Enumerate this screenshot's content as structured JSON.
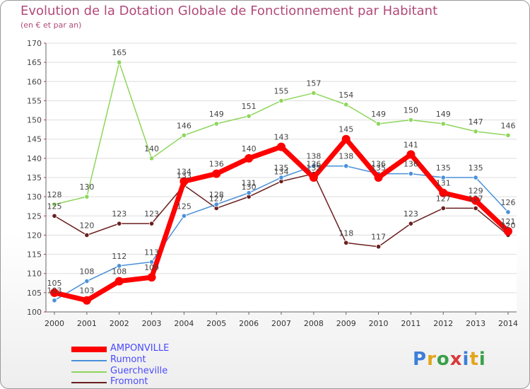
{
  "title": "Evolution de la Dotation Globale de Fonctionnement par Habitant",
  "subtitle": "(en € et par an)",
  "logo": {
    "text": "Proxiti",
    "colors": [
      "#3d7fd8",
      "#e2a51a",
      "#3aa04a",
      "#d93a3a",
      "#3d7fd8",
      "#e2a51a",
      "#3aa04a"
    ]
  },
  "chart_data": {
    "type": "line",
    "title": "Evolution de la Dotation Globale de Fonctionnement par Habitant",
    "subtitle": "(en € et par an)",
    "xlabel": "",
    "ylabel": "",
    "ylim": [
      100,
      170
    ],
    "y_ticks": [
      100,
      105,
      110,
      115,
      120,
      125,
      130,
      135,
      140,
      145,
      150,
      155,
      160,
      165,
      170
    ],
    "x": [
      "2000",
      "2001",
      "2002",
      "2003",
      "2004",
      "2005",
      "2006",
      "2007",
      "2008",
      "2009",
      "2010",
      "2011",
      "2012",
      "2013",
      "2014"
    ],
    "grid": "horizontal",
    "legend_position": "bottom-left",
    "series": [
      {
        "name": "AMPONVILLE",
        "color": "#ff0000",
        "values": [
          105,
          103,
          108,
          109,
          134,
          136,
          140,
          143,
          135,
          145,
          135,
          141,
          131,
          129,
          121
        ]
      },
      {
        "name": "Rumont",
        "color": "#4a90d9",
        "values": [
          103,
          108,
          112,
          113,
          125,
          128,
          131,
          135,
          138,
          138,
          136,
          136,
          135,
          135,
          126
        ]
      },
      {
        "name": "Guercheville",
        "color": "#8ed65c",
        "values": [
          128,
          130,
          165,
          140,
          146,
          149,
          151,
          155,
          157,
          154,
          149,
          150,
          149,
          147,
          146
        ]
      },
      {
        "name": "Fromont",
        "color": "#6b1e1e",
        "values": [
          125,
          120,
          123,
          123,
          133,
          127,
          130,
          134,
          136,
          118,
          117,
          123,
          127,
          127,
          120
        ]
      }
    ]
  }
}
